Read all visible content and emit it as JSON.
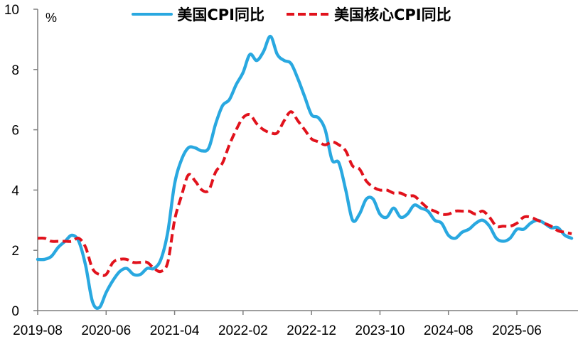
{
  "chart_data": {
    "type": "line",
    "title": "",
    "xlabel": "",
    "ylabel": "%",
    "ylim": [
      0,
      10
    ],
    "yticks": [
      0,
      2,
      4,
      6,
      8,
      10
    ],
    "grid": false,
    "legend_position": "top-center",
    "axis_color": "#7f7f7f",
    "text_color": "#000000",
    "x": [
      "2019-08",
      "2019-09",
      "2019-10",
      "2019-11",
      "2019-12",
      "2020-01",
      "2020-02",
      "2020-03",
      "2020-04",
      "2020-05",
      "2020-06",
      "2020-07",
      "2020-08",
      "2020-09",
      "2020-10",
      "2020-11",
      "2020-12",
      "2021-01",
      "2021-02",
      "2021-03",
      "2021-04",
      "2021-05",
      "2021-06",
      "2021-07",
      "2021-08",
      "2021-09",
      "2021-10",
      "2021-11",
      "2021-12",
      "2022-01",
      "2022-02",
      "2022-03",
      "2022-04",
      "2022-05",
      "2022-06",
      "2022-07",
      "2022-08",
      "2022-09",
      "2022-10",
      "2022-11",
      "2022-12",
      "2023-01",
      "2023-02",
      "2023-03",
      "2023-04",
      "2023-05",
      "2023-06",
      "2023-07",
      "2023-08",
      "2023-09",
      "2023-10",
      "2023-11",
      "2023-12",
      "2024-01",
      "2024-02",
      "2024-03",
      "2024-04",
      "2024-05",
      "2024-06",
      "2024-07",
      "2024-08",
      "2024-09",
      "2024-10",
      "2024-11",
      "2024-12",
      "2025-01",
      "2025-02",
      "2025-03",
      "2025-04",
      "2025-05",
      "2025-06",
      "2025-07",
      "2025-08",
      "2025-09",
      "2025-10",
      "2025-11",
      "2025-12",
      "2026-01",
      "2026-02"
    ],
    "xtick_labels": [
      "2019-08",
      "2020-06",
      "2021-04",
      "2022-02",
      "2022-12",
      "2023-10",
      "2024-08",
      "2025-06"
    ],
    "series": [
      {
        "name": "美国CPI同比",
        "color": "#29a8e0",
        "style": "solid",
        "values": [
          1.7,
          1.7,
          1.8,
          2.1,
          2.3,
          2.5,
          2.3,
          1.5,
          0.3,
          0.1,
          0.6,
          1.0,
          1.3,
          1.4,
          1.2,
          1.2,
          1.4,
          1.4,
          1.7,
          2.6,
          4.2,
          5.0,
          5.4,
          5.4,
          5.3,
          5.4,
          6.2,
          6.8,
          7.0,
          7.5,
          7.9,
          8.5,
          8.3,
          8.6,
          9.1,
          8.5,
          8.3,
          8.2,
          7.7,
          7.1,
          6.5,
          6.4,
          6.0,
          5.0,
          4.9,
          4.0,
          3.0,
          3.2,
          3.7,
          3.7,
          3.2,
          3.1,
          3.4,
          3.1,
          3.2,
          3.5,
          3.4,
          3.3,
          3.0,
          2.9,
          2.5,
          2.4,
          2.6,
          2.7,
          2.9,
          3.0,
          2.8,
          2.4,
          2.3,
          2.4,
          2.7,
          2.7,
          2.9,
          3.0,
          2.9,
          2.75,
          2.75,
          2.5,
          2.4
        ]
      },
      {
        "name": "美国核心CPI同比",
        "color": "#e1121c",
        "style": "dashed",
        "values": [
          2.4,
          2.4,
          2.3,
          2.3,
          2.3,
          2.3,
          2.4,
          2.1,
          1.4,
          1.2,
          1.2,
          1.6,
          1.7,
          1.7,
          1.6,
          1.6,
          1.6,
          1.4,
          1.3,
          1.6,
          3.0,
          3.8,
          4.5,
          4.3,
          4.0,
          4.0,
          4.6,
          4.9,
          5.5,
          6.0,
          6.4,
          6.5,
          6.2,
          6.0,
          5.9,
          5.9,
          6.3,
          6.6,
          6.3,
          6.0,
          5.7,
          5.6,
          5.5,
          5.6,
          5.5,
          5.3,
          4.8,
          4.7,
          4.3,
          4.1,
          4.0,
          4.0,
          3.9,
          3.9,
          3.8,
          3.8,
          3.6,
          3.4,
          3.3,
          3.2,
          3.2,
          3.3,
          3.3,
          3.3,
          3.2,
          3.3,
          3.1,
          2.8,
          2.8,
          2.8,
          2.9,
          3.1,
          3.1,
          3.0,
          2.9,
          2.8,
          2.65,
          2.6,
          2.55
        ]
      }
    ]
  }
}
